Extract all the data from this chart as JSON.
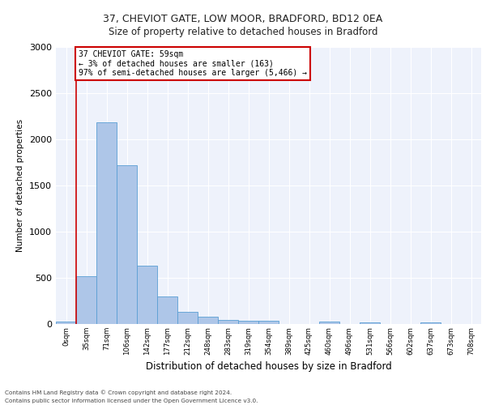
{
  "title_line1": "37, CHEVIOT GATE, LOW MOOR, BRADFORD, BD12 0EA",
  "title_line2": "Size of property relative to detached houses in Bradford",
  "xlabel": "Distribution of detached houses by size in Bradford",
  "ylabel": "Number of detached properties",
  "bin_labels": [
    "0sqm",
    "35sqm",
    "71sqm",
    "106sqm",
    "142sqm",
    "177sqm",
    "212sqm",
    "248sqm",
    "283sqm",
    "319sqm",
    "354sqm",
    "389sqm",
    "425sqm",
    "460sqm",
    "496sqm",
    "531sqm",
    "566sqm",
    "602sqm",
    "637sqm",
    "673sqm",
    "708sqm"
  ],
  "bar_values": [
    30,
    520,
    2185,
    1720,
    630,
    295,
    130,
    75,
    45,
    35,
    35,
    0,
    0,
    30,
    0,
    20,
    0,
    0,
    20,
    0,
    0
  ],
  "bar_color": "#aec6e8",
  "bar_edge_color": "#5a9fd4",
  "ylim": [
    0,
    3000
  ],
  "yticks": [
    0,
    500,
    1000,
    1500,
    2000,
    2500,
    3000
  ],
  "vline_x": 1.5,
  "annotation_text": "37 CHEVIOT GATE: 59sqm\n← 3% of detached houses are smaller (163)\n97% of semi-detached houses are larger (5,466) →",
  "annotation_box_color": "#ffffff",
  "annotation_border_color": "#cc0000",
  "footer_line1": "Contains HM Land Registry data © Crown copyright and database right 2024.",
  "footer_line2": "Contains public sector information licensed under the Open Government Licence v3.0.",
  "bg_color": "#eef2fb",
  "grid_color": "#ffffff",
  "vline_color": "#cc0000"
}
